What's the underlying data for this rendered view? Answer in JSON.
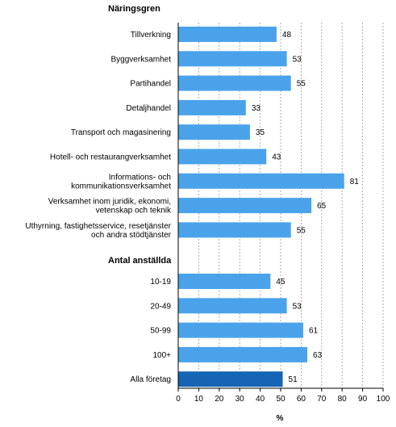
{
  "chart_data": {
    "type": "bar",
    "orientation": "horizontal",
    "xlabel": "%",
    "xlim": [
      0,
      100
    ],
    "x_ticks": [
      "0",
      "10",
      "20",
      "30",
      "40",
      "50",
      "60",
      "70",
      "80",
      "90",
      "100"
    ],
    "grid": "vertical dashed",
    "sections": [
      {
        "title": "Näringsgren",
        "categories": [
          [
            "Tillverkning"
          ],
          [
            "Byggverksamhet"
          ],
          [
            "Partihandel"
          ],
          [
            "Detaljhandel"
          ],
          [
            "Transport och magasinering"
          ],
          [
            "Hotell- och restaurangverksamhet"
          ],
          [
            "Informations- och",
            "kommunikationsverksamhet"
          ],
          [
            "Verksamhet inom juridik, ekonomi,",
            "vetenskap och teknik"
          ],
          [
            "Uthyrning, fastighetsservice, resetjänster",
            "och andra stödtjänster"
          ]
        ],
        "values": [
          48,
          53,
          55,
          33,
          35,
          43,
          81,
          65,
          55
        ]
      },
      {
        "title": "Antal anställda",
        "categories": [
          [
            "10-19"
          ],
          [
            "20-49"
          ],
          [
            "50-99"
          ],
          [
            "100+"
          ],
          [
            "Alla företag"
          ]
        ],
        "values": [
          45,
          53,
          61,
          63,
          51
        ]
      }
    ],
    "highlight_category": "Alla företag",
    "colors": {
      "bar": "#4aa3ea",
      "highlight": "#1565b4",
      "grid": "#9a9a9a",
      "axis": "#000000"
    }
  }
}
